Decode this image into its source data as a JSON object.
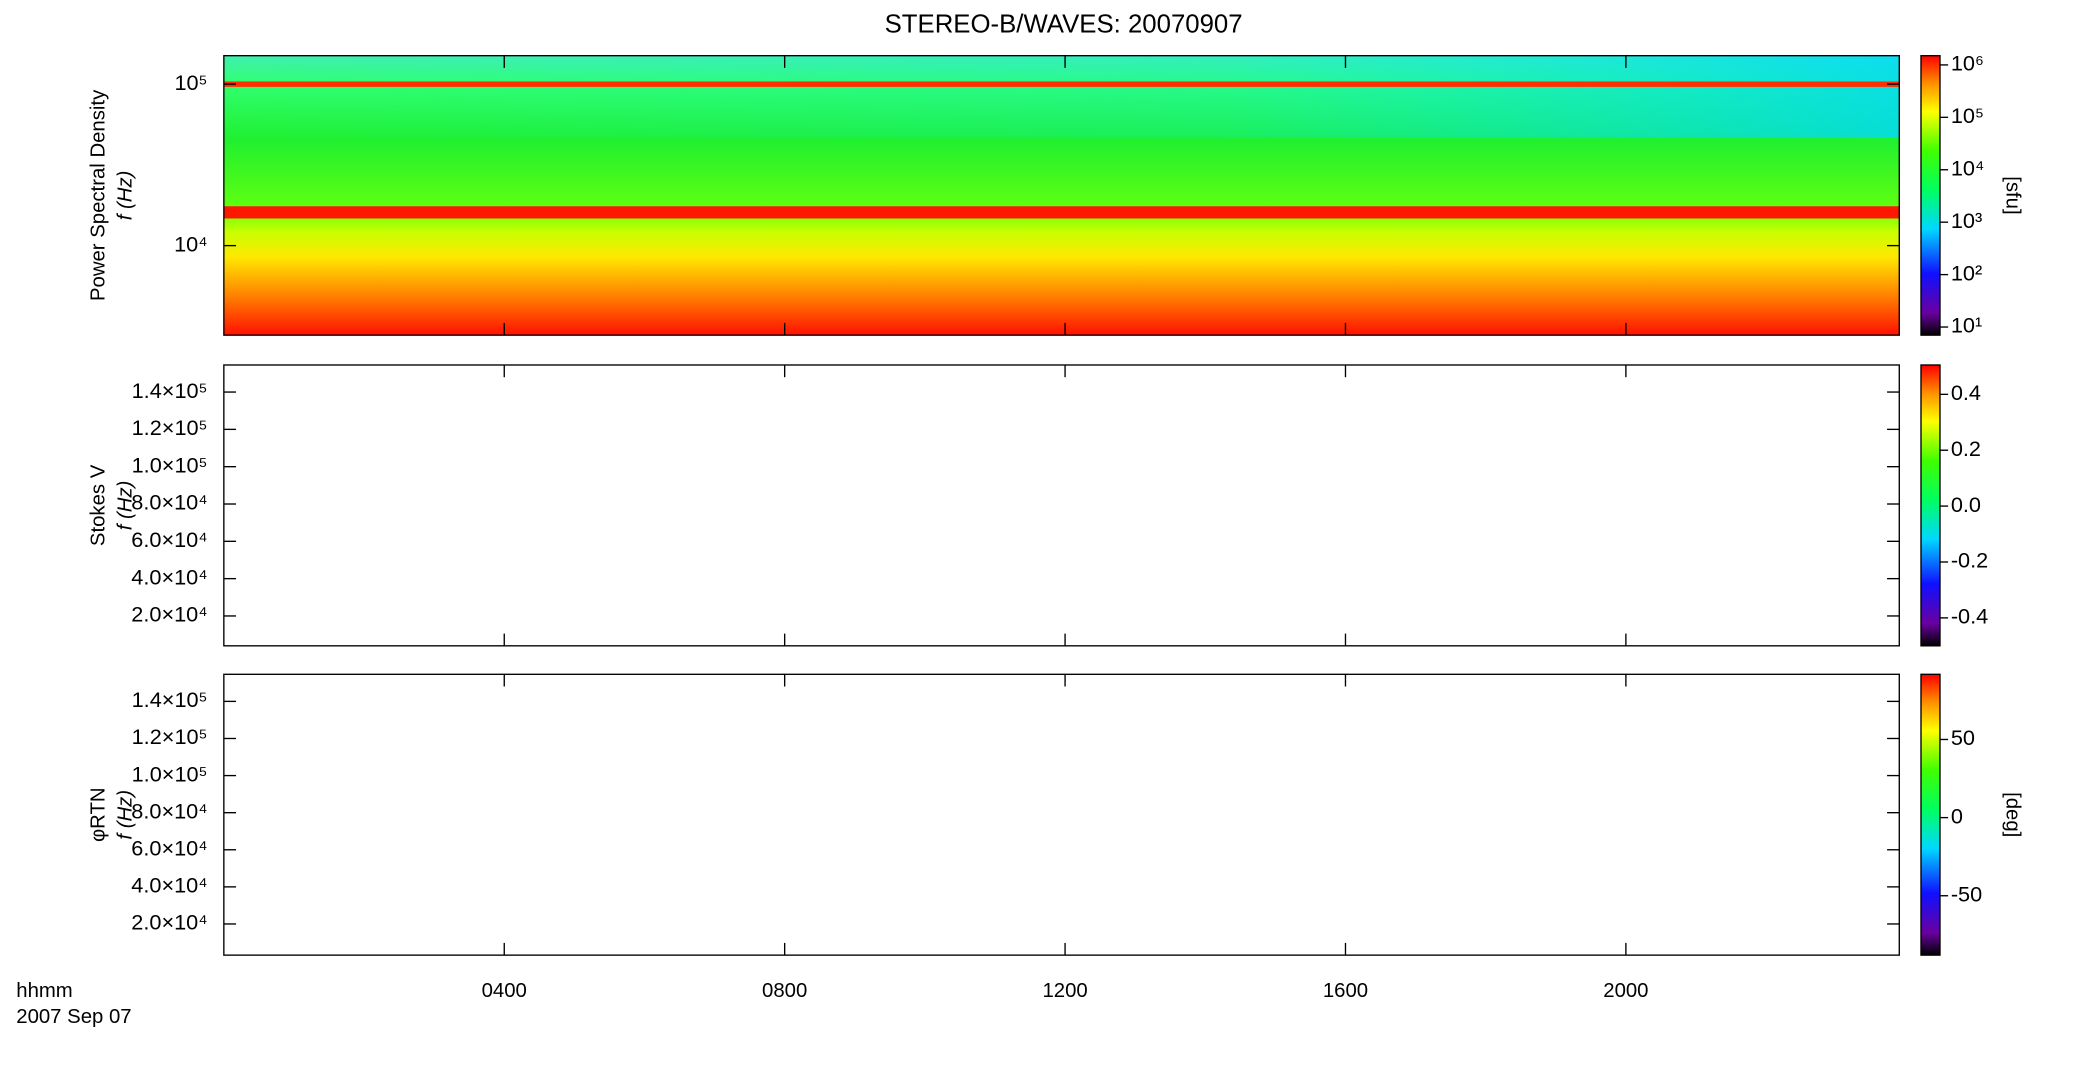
{
  "title": "STEREO-B/WAVES: 20070907",
  "x_axis": {
    "xlim": [
      0,
      23.9
    ],
    "xticks": [
      {
        "value": 4,
        "label": "0400"
      },
      {
        "value": 8,
        "label": "0800"
      },
      {
        "value": 12,
        "label": "1200"
      },
      {
        "value": 16,
        "label": "1600"
      },
      {
        "value": 20,
        "label": "2000"
      }
    ],
    "label": "hhmm",
    "date": "2007 Sep 07"
  },
  "chart_data": [
    {
      "type": "spectrogram",
      "ylabel": [
        "Power Spectral Density",
        "f (Hz)"
      ],
      "ylog": true,
      "ylim": [
        2790,
        150000
      ],
      "yticks": [
        {
          "value": 10000,
          "label": "10⁴"
        },
        {
          "value": 100000,
          "label": "10⁵"
        }
      ],
      "colorbar": {
        "label": "[sfu]",
        "log": true,
        "lim": [
          7,
          1500000
        ],
        "ticks": [
          {
            "value": 10,
            "label": "10¹"
          },
          {
            "value": 100,
            "label": "10²"
          },
          {
            "value": 1000,
            "label": "10³"
          },
          {
            "value": 10000,
            "label": "10⁴"
          },
          {
            "value": 100000,
            "label": "10⁵"
          },
          {
            "value": 1000000,
            "label": "10⁶"
          }
        ]
      }
    },
    {
      "type": "spectrogram",
      "ylabel": [
        "Stokes V",
        "f (Hz)"
      ],
      "ylog": false,
      "ylim": [
        4000,
        154500
      ],
      "yticks": [
        {
          "value": 20000,
          "label": "2.0×10⁴"
        },
        {
          "value": 40000,
          "label": "4.0×10⁴"
        },
        {
          "value": 60000,
          "label": "6.0×10⁴"
        },
        {
          "value": 80000,
          "label": "8.0×10⁴"
        },
        {
          "value": 100000,
          "label": "1.0×10⁵"
        },
        {
          "value": 120000,
          "label": "1.2×10⁵"
        },
        {
          "value": 140000,
          "label": "1.4×10⁵"
        }
      ],
      "colorbar": {
        "log": false,
        "lim": [
          -0.5,
          0.505
        ],
        "ticks": [
          -0.4,
          -0.2,
          {
            "value": 0,
            "label": "0.0"
          },
          0.2,
          0.4
        ]
      }
    },
    {
      "type": "spectrogram",
      "ylabel": [
        "φRTN",
        "f (Hz)"
      ],
      "ylog": false,
      "ylim": [
        3200,
        154600
      ],
      "yticks": [
        {
          "value": 20000,
          "label": "2.0×10⁴"
        },
        {
          "value": 40000,
          "label": "4.0×10⁴"
        },
        {
          "value": 60000,
          "label": "6.0×10⁴"
        },
        {
          "value": 80000,
          "label": "8.0×10⁴"
        },
        {
          "value": 100000,
          "label": "1.0×10⁵"
        },
        {
          "value": 120000,
          "label": "1.2×10⁵"
        },
        {
          "value": 140000,
          "label": "1.4×10⁵"
        }
      ],
      "colorbar": {
        "label": "[deg]",
        "log": false,
        "lim": [
          -88,
          91.7
        ],
        "ticks": [
          -50,
          0,
          50
        ]
      }
    }
  ]
}
